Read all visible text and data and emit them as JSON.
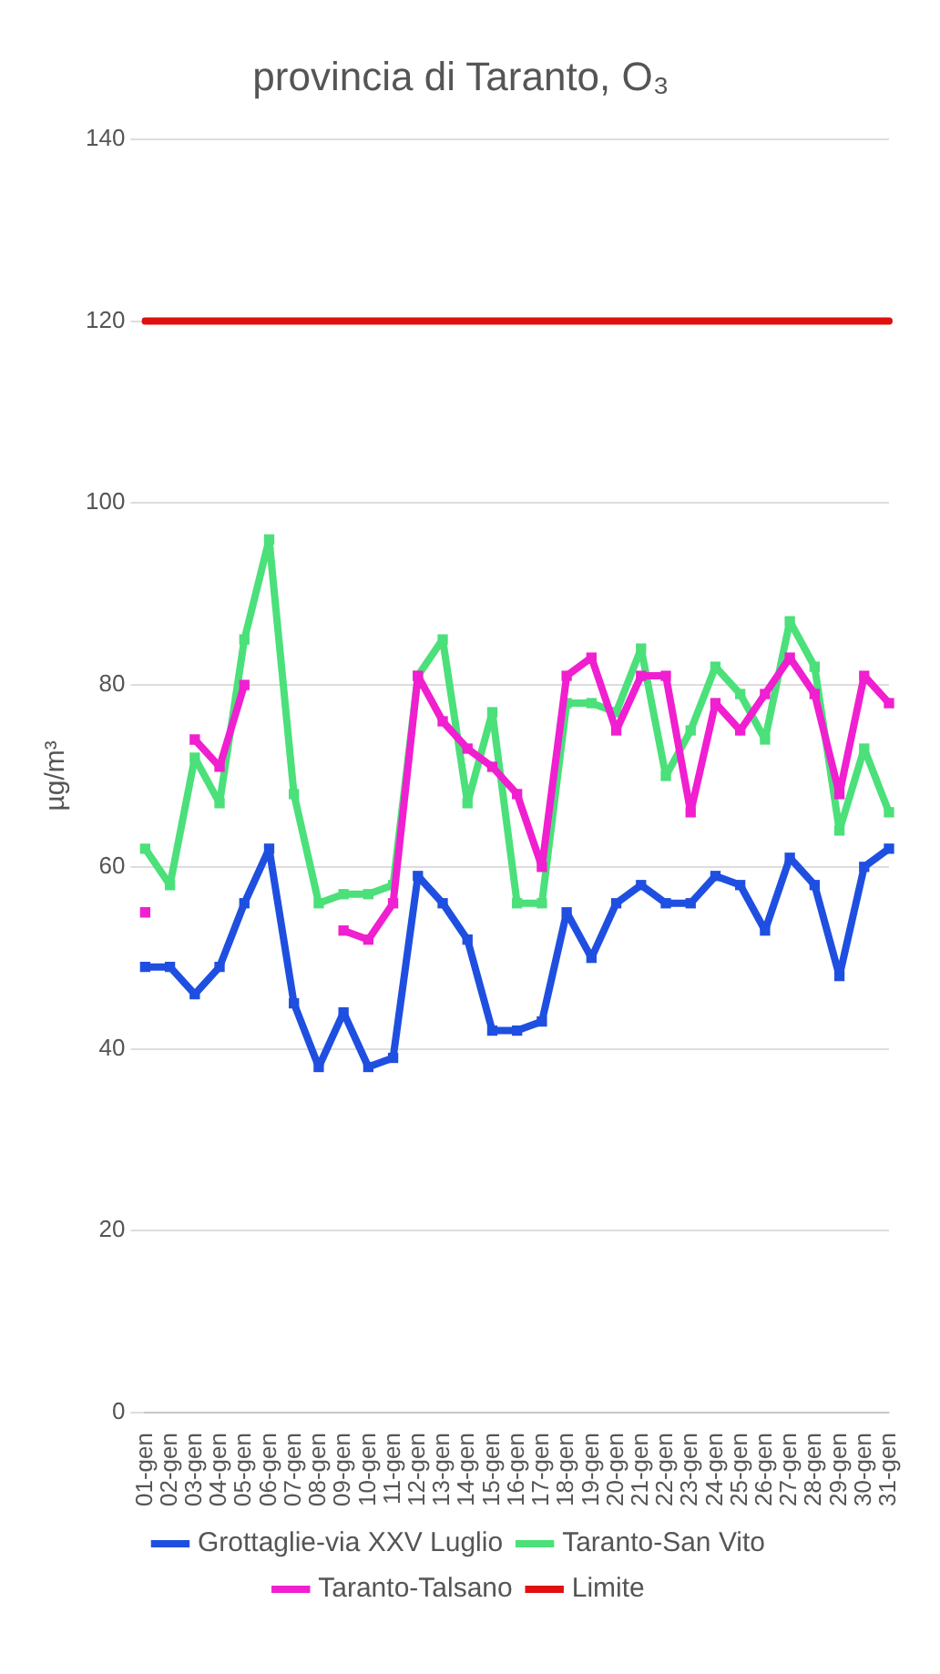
{
  "chart_data": {
    "type": "line",
    "title": "provincia di Taranto, O₃",
    "ylabel": "µg/m³",
    "categories": [
      "01-gen",
      "02-gen",
      "03-gen",
      "04-gen",
      "05-gen",
      "06-gen",
      "07-gen",
      "08-gen",
      "09-gen",
      "10-gen",
      "11-gen",
      "12-gen",
      "13-gen",
      "14-gen",
      "15-gen",
      "16-gen",
      "17-gen",
      "18-gen",
      "19-gen",
      "20-gen",
      "21-gen",
      "22-gen",
      "23-gen",
      "24-gen",
      "25-gen",
      "26-gen",
      "27-gen",
      "28-gen",
      "29-gen",
      "30-gen",
      "31-gen"
    ],
    "series": [
      {
        "name": "Grottaglie-via XXV Luglio",
        "color": "#1f4fe0",
        "values": [
          49,
          49,
          46,
          49,
          56,
          62,
          45,
          38,
          44,
          38,
          39,
          59,
          56,
          52,
          42,
          42,
          43,
          55,
          50,
          56,
          58,
          56,
          56,
          59,
          58,
          53,
          61,
          58,
          48,
          60,
          62
        ]
      },
      {
        "name": "Taranto-San Vito",
        "color": "#4be07a",
        "values": [
          62,
          58,
          72,
          67,
          85,
          96,
          68,
          56,
          57,
          57,
          58,
          81,
          85,
          67,
          77,
          56,
          56,
          78,
          78,
          77,
          84,
          70,
          75,
          82,
          79,
          74,
          87,
          82,
          64,
          73,
          66
        ]
      },
      {
        "name": "Taranto-Talsano",
        "color": "#f01fd0",
        "values": [
          55,
          null,
          74,
          71,
          80,
          null,
          null,
          null,
          53,
          52,
          56,
          81,
          76,
          73,
          71,
          68,
          60,
          81,
          83,
          75,
          81,
          81,
          66,
          78,
          75,
          79,
          83,
          79,
          68,
          81,
          78
        ]
      },
      {
        "name": "Limite",
        "color": "#e01010",
        "marker": "none",
        "values": [
          120,
          120,
          120,
          120,
          120,
          120,
          120,
          120,
          120,
          120,
          120,
          120,
          120,
          120,
          120,
          120,
          120,
          120,
          120,
          120,
          120,
          120,
          120,
          120,
          120,
          120,
          120,
          120,
          120,
          120,
          120
        ]
      }
    ],
    "ylim": [
      0,
      140
    ],
    "yticks": [
      0,
      20,
      40,
      60,
      80,
      100,
      120,
      140
    ],
    "grid": "y",
    "legend": "bottom",
    "marker": "square"
  }
}
